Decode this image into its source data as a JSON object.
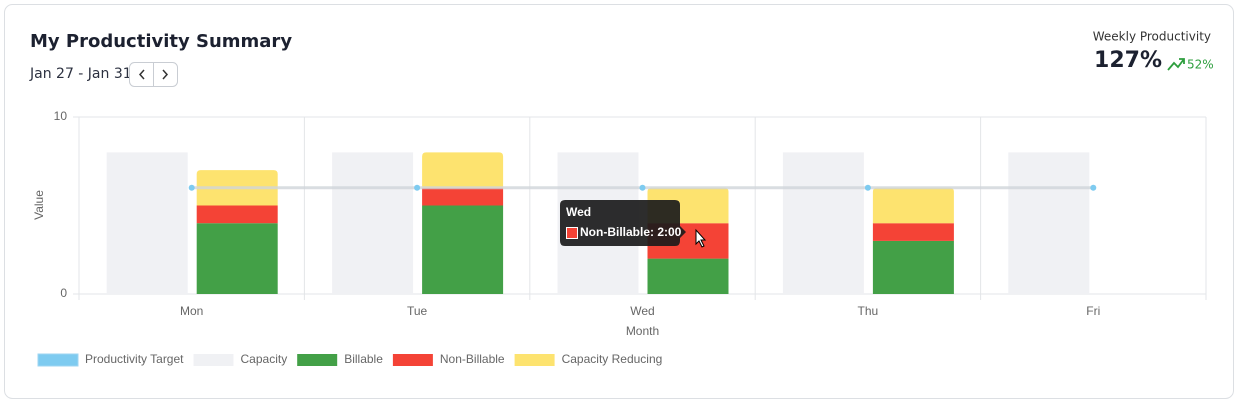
{
  "header": {
    "title": "My Productivity Summary",
    "date_range": "Jan 27 - Jan 31",
    "weekly_label": "Weekly Productivity",
    "weekly_value": "127%",
    "change": "52%"
  },
  "tooltip": {
    "title": "Wed",
    "label": "Non-Billable: 2:00"
  },
  "chart_data": {
    "type": "bar",
    "x_label": "Month",
    "y_label": "Value",
    "categories": [
      "Mon",
      "Tue",
      "Wed",
      "Thu",
      "Fri"
    ],
    "ylim": [
      0,
      10
    ],
    "yticks": [
      0,
      10
    ],
    "grid": true,
    "legend": "bottom-left",
    "series": [
      {
        "name": "Productivity Target",
        "type": "line",
        "color": "#7ecbf0",
        "values": [
          6,
          6,
          6,
          6,
          6
        ]
      },
      {
        "name": "Capacity",
        "type": "bar",
        "color": "#f0f1f4",
        "values": [
          8,
          8,
          8,
          8,
          8
        ]
      },
      {
        "name": "Billable",
        "type": "bar",
        "color": "#43a047",
        "values": [
          4,
          5,
          2,
          3,
          0
        ]
      },
      {
        "name": "Non-Billable",
        "type": "bar",
        "color": "#f44336",
        "values": [
          1,
          1,
          2,
          1,
          0
        ]
      },
      {
        "name": "Capacity Reducing",
        "type": "bar",
        "color": "#fde36f",
        "values": [
          2,
          2,
          2,
          2,
          0
        ]
      }
    ]
  }
}
